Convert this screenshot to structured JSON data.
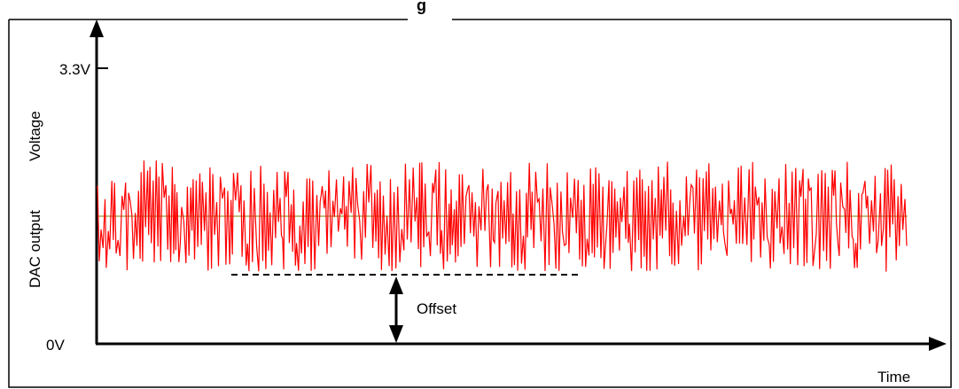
{
  "figure": {
    "title_partial": "g",
    "y_axis_label_1": "DAC output",
    "y_axis_label_2": "Voltage",
    "x_axis_label": "Time",
    "y_tick_top": "3.3V",
    "y_tick_bottom": "0V",
    "offset_label": "Offset",
    "signal_color": "#ff0000",
    "midline_color": "#808000",
    "offset_line_style": "dashed"
  }
}
